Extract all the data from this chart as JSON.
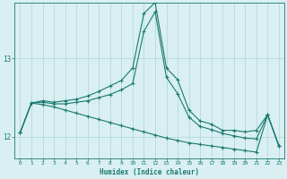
{
  "xlabel": "Humidex (Indice chaleur)",
  "background_color": "#d9eff2",
  "grid_color": "#b8dde0",
  "line_color": "#1a7a6e",
  "xlim": [
    -0.5,
    23.5
  ],
  "ylim": [
    11.72,
    13.72
  ],
  "yticks": [
    12,
    13
  ],
  "xticks": [
    0,
    1,
    2,
    3,
    4,
    5,
    6,
    7,
    8,
    9,
    10,
    11,
    12,
    13,
    14,
    15,
    16,
    17,
    18,
    19,
    20,
    21,
    22,
    23
  ],
  "line1_x": [
    0,
    1,
    2,
    3,
    4,
    5,
    6,
    7,
    8,
    9,
    10,
    11,
    12,
    13,
    14,
    15,
    16,
    17,
    18,
    19,
    20,
    21,
    22,
    23
  ],
  "line1_y": [
    12.05,
    12.43,
    12.46,
    12.44,
    12.46,
    12.48,
    12.52,
    12.58,
    12.65,
    12.72,
    12.88,
    13.58,
    13.72,
    12.88,
    12.73,
    12.34,
    12.2,
    12.16,
    12.08,
    12.08,
    12.06,
    12.08,
    12.28,
    11.88
  ],
  "line2_x": [
    0,
    1,
    2,
    3,
    4,
    5,
    6,
    7,
    8,
    9,
    10,
    11,
    12,
    13,
    14,
    15,
    16,
    17,
    18,
    19,
    20,
    21,
    22,
    23
  ],
  "line2_y": [
    12.05,
    12.43,
    12.44,
    12.42,
    12.42,
    12.44,
    12.46,
    12.5,
    12.54,
    12.6,
    12.68,
    13.35,
    13.6,
    12.76,
    12.55,
    12.25,
    12.13,
    12.09,
    12.04,
    12.01,
    11.98,
    11.97,
    12.28,
    11.88
  ],
  "line3_x": [
    0,
    1,
    2,
    3,
    4,
    5,
    6,
    7,
    8,
    9,
    10,
    11,
    12,
    13,
    14,
    15,
    16,
    17,
    18,
    19,
    20,
    21,
    22,
    23
  ],
  "line3_y": [
    12.05,
    12.43,
    12.41,
    12.38,
    12.34,
    12.3,
    12.26,
    12.22,
    12.18,
    12.14,
    12.1,
    12.06,
    12.02,
    11.98,
    11.95,
    11.92,
    11.9,
    11.88,
    11.86,
    11.84,
    11.82,
    11.8,
    12.28,
    11.88
  ]
}
